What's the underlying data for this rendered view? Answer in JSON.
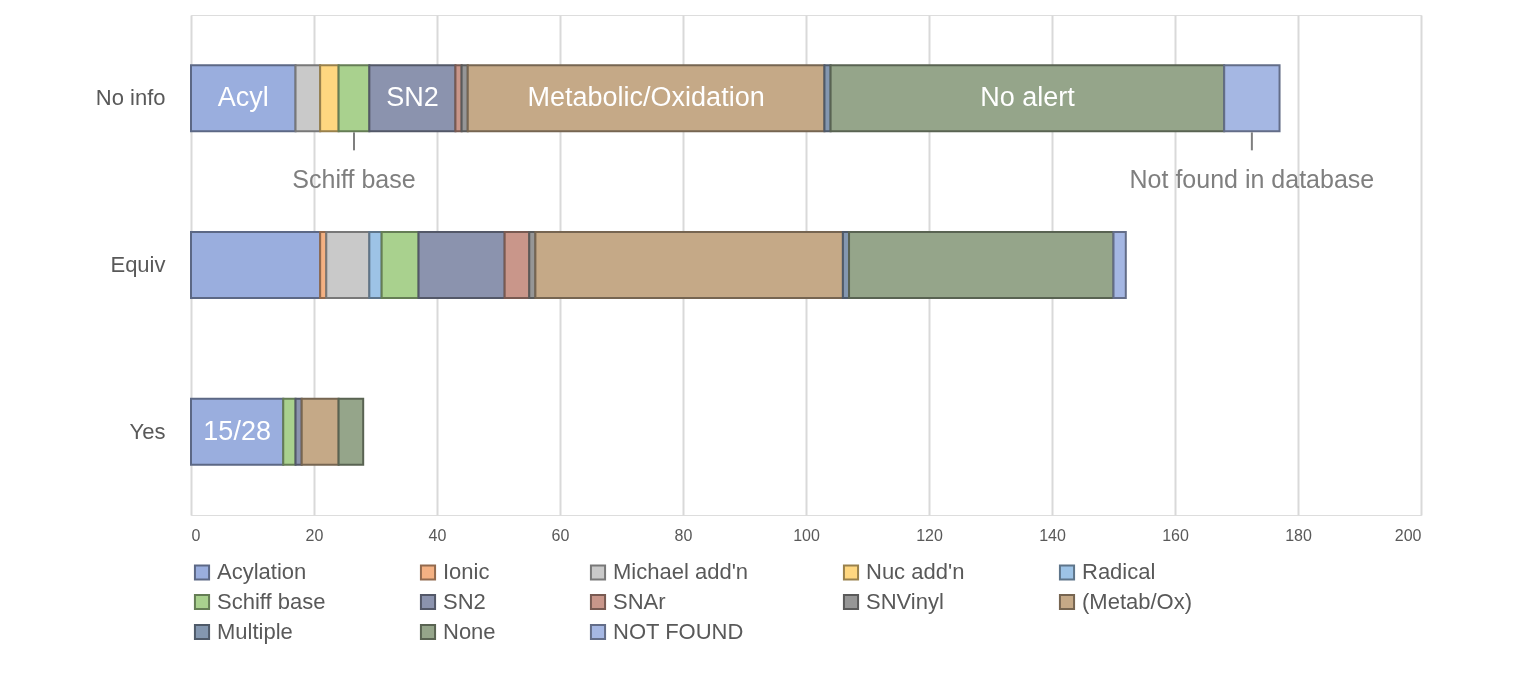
{
  "chart_data": {
    "type": "bar",
    "orientation": "horizontal",
    "stacked": true,
    "categories": [
      "No info",
      "Equiv",
      "Yes"
    ],
    "series": [
      {
        "name": "Acylation",
        "color": "#9aaede",
        "values": [
          17,
          21,
          15
        ]
      },
      {
        "name": "Ionic",
        "color": "#f4b183",
        "values": [
          0,
          1,
          0
        ]
      },
      {
        "name": "Michael add'n",
        "color": "#c9c9c9",
        "values": [
          4,
          7,
          0
        ]
      },
      {
        "name": "Nuc add'n",
        "color": "#ffd780",
        "values": [
          3,
          0,
          0
        ]
      },
      {
        "name": "Radical",
        "color": "#9dc3e6",
        "values": [
          0,
          2,
          0
        ]
      },
      {
        "name": "Schiff base",
        "color": "#a9d18e",
        "values": [
          5,
          6,
          2
        ]
      },
      {
        "name": "SN2",
        "color": "#8b93ae",
        "values": [
          14,
          14,
          1
        ]
      },
      {
        "name": "SNAr",
        "color": "#c9968a",
        "values": [
          1,
          4,
          0
        ]
      },
      {
        "name": "SNVinyl",
        "color": "#969696",
        "values": [
          1,
          1,
          0
        ]
      },
      {
        "name": "(Metab/Ox)",
        "color": "#c5a987",
        "values": [
          58,
          50,
          6
        ]
      },
      {
        "name": "Multiple",
        "color": "#8497b0",
        "values": [
          1,
          1,
          0
        ]
      },
      {
        "name": "None",
        "color": "#95a58a",
        "values": [
          64,
          43,
          4
        ]
      },
      {
        "name": "NOT FOUND",
        "color": "#a5b7e3",
        "values": [
          9,
          2,
          0
        ]
      }
    ],
    "xlim": [
      0,
      200
    ],
    "xticks": [
      0,
      20,
      40,
      60,
      80,
      100,
      120,
      140,
      160,
      180,
      200
    ],
    "grid": "x",
    "legend": "bottom",
    "annotations": [
      "Acyl",
      "SN2",
      "Metabolic/Oxidation",
      "No alert",
      "Schiff base",
      "Not found in database",
      "15/28"
    ]
  }
}
